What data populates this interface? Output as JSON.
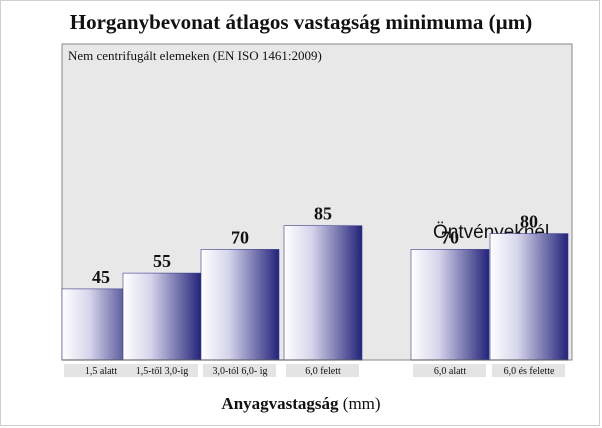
{
  "chart_data": {
    "type": "bar",
    "title": "Horganybevonat átlagos vastagság minimuma (µm)",
    "subtitle": "Nem centrifugált elemeken (EN ISO 1461:2009)",
    "group_label": "Öntvényeknél",
    "xlabel_bold": "Anyagvastagság",
    "xlabel_unit": "(mm)",
    "categories": [
      "1,5 alatt",
      "1,5-től 3,0-ig",
      "3,0-tól 6,0- ig",
      "6,0 felett",
      "6,0 alatt",
      "6,0 és felette"
    ],
    "values": [
      45,
      55,
      70,
      85,
      70,
      80
    ],
    "value_labels": [
      "45",
      "55",
      "70",
      "85",
      "70",
      "80"
    ],
    "groups": [
      [
        0,
        1,
        2,
        3
      ],
      [
        4,
        5
      ]
    ],
    "ylim": [
      0,
      200
    ],
    "grid": false,
    "colors": {
      "bar_light": "#ffffff",
      "bar_dark": "#23237a",
      "plot_bg": "#e8e8e8",
      "baseline": "#555555"
    }
  }
}
